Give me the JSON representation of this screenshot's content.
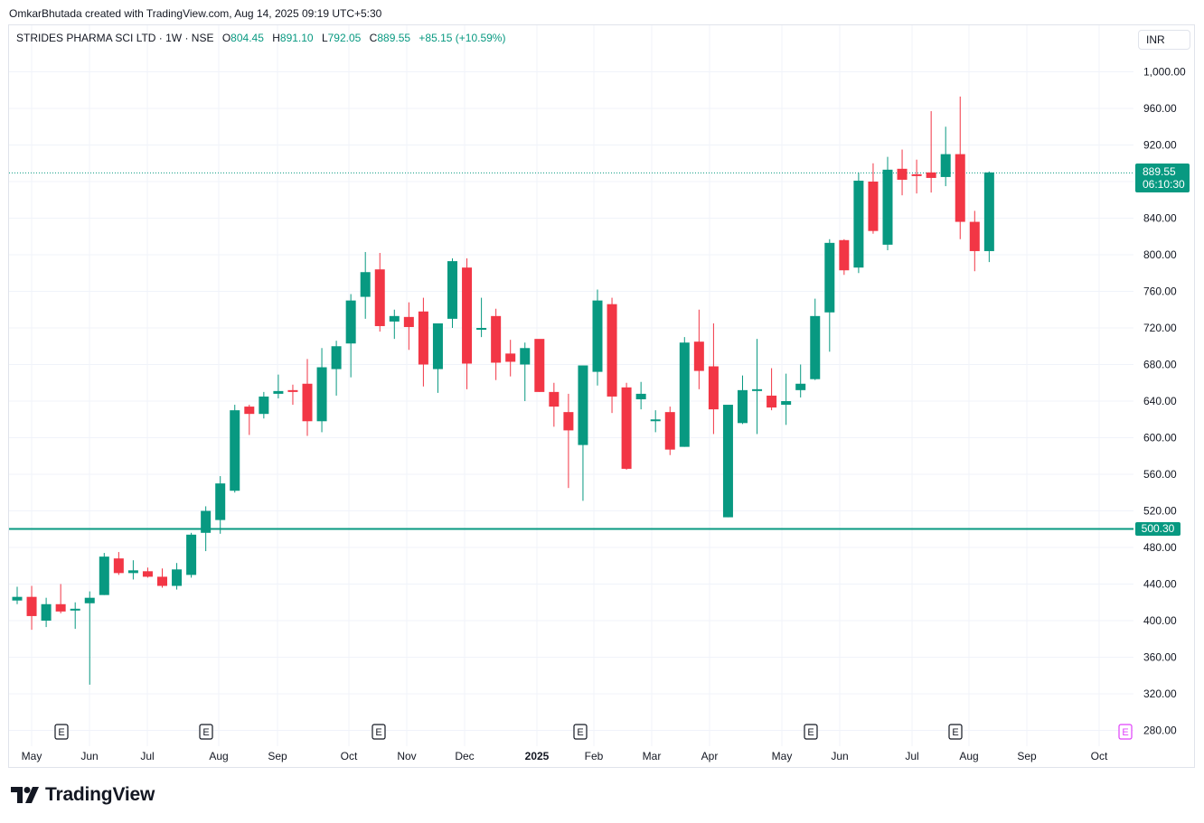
{
  "header": {
    "credit": "OmkarBhutada created with TradingView.com, Aug 14, 2025 09:19 UTC+5:30"
  },
  "legend": {
    "symbol": "STRIDES PHARMA SCI LTD · 1W · NSE",
    "open_label": "O",
    "open": "804.45",
    "high_label": "H",
    "high": "891.10",
    "low_label": "L",
    "low": "792.05",
    "close_label": "C",
    "close": "889.55",
    "change": "+85.15 (+10.59%)"
  },
  "currency_button": "INR",
  "last_price_tag": {
    "price": "889.55",
    "countdown": "06:10:30"
  },
  "support_line_tag": "500.30",
  "footer": {
    "brand": "TradingView"
  },
  "colors": {
    "up": "#089981",
    "down": "#f23645",
    "grid": "#f0f3fa",
    "earnings": "#e040fb"
  },
  "chart_data": {
    "type": "candlestick",
    "interval": "1W",
    "y_axis": {
      "ticks": [
        280,
        320,
        360,
        400,
        440,
        480,
        520,
        560,
        600,
        640,
        680,
        720,
        760,
        800,
        840,
        880,
        920,
        960,
        1000
      ],
      "tick_labels": [
        "280.00",
        "320.00",
        "360.00",
        "400.00",
        "440.00",
        "480.00",
        "520.00",
        "560.00",
        "600.00",
        "640.00",
        "680.00",
        "720.00",
        "760.00",
        "800.00",
        "840.00",
        "",
        "920.00",
        "960.00",
        "1,000.00"
      ]
    },
    "x_axis": {
      "labels": [
        {
          "text": "May",
          "bold": false
        },
        {
          "text": "Jun",
          "bold": false
        },
        {
          "text": "Jul",
          "bold": false
        },
        {
          "text": "Aug",
          "bold": false
        },
        {
          "text": "Sep",
          "bold": false
        },
        {
          "text": "Oct",
          "bold": false
        },
        {
          "text": "Nov",
          "bold": false
        },
        {
          "text": "Dec",
          "bold": false
        },
        {
          "text": "2025",
          "bold": true
        },
        {
          "text": "Feb",
          "bold": false
        },
        {
          "text": "Mar",
          "bold": false
        },
        {
          "text": "Apr",
          "bold": false
        },
        {
          "text": "May",
          "bold": false
        },
        {
          "text": "Jun",
          "bold": false
        },
        {
          "text": "Jul",
          "bold": false
        },
        {
          "text": "Aug",
          "bold": false
        },
        {
          "text": "Sep",
          "bold": false
        },
        {
          "text": "Oct",
          "bold": false
        }
      ]
    },
    "horizontal_line": 500.3,
    "last_price": 889.55,
    "earnings_markers": [
      {
        "label": "E",
        "upcoming": false
      },
      {
        "label": "E",
        "upcoming": false
      },
      {
        "label": "E",
        "upcoming": false
      },
      {
        "label": "E",
        "upcoming": false
      },
      {
        "label": "E",
        "upcoming": false
      },
      {
        "label": "E",
        "upcoming": false
      },
      {
        "label": "E",
        "upcoming": true
      }
    ],
    "candles": [
      [
        422,
        437,
        418,
        426
      ],
      [
        426,
        438,
        390,
        405
      ],
      [
        400,
        425,
        393,
        418
      ],
      [
        418,
        440,
        408,
        410
      ],
      [
        412,
        420,
        391,
        413
      ],
      [
        419,
        432,
        330,
        425
      ],
      [
        428,
        474,
        428,
        470
      ],
      [
        468,
        475,
        450,
        452
      ],
      [
        452,
        466,
        445,
        455
      ],
      [
        454,
        458,
        447,
        448
      ],
      [
        448,
        457,
        436,
        438
      ],
      [
        438,
        463,
        434,
        456
      ],
      [
        450,
        496,
        447,
        494
      ],
      [
        496,
        525,
        476,
        520
      ],
      [
        510,
        558,
        495,
        550
      ],
      [
        542,
        636,
        540,
        630
      ],
      [
        634,
        636,
        603,
        626
      ],
      [
        626,
        650,
        621,
        645
      ],
      [
        648,
        669,
        643,
        651
      ],
      [
        652,
        658,
        636,
        650
      ],
      [
        659,
        686,
        602,
        618
      ],
      [
        618,
        698,
        606,
        677
      ],
      [
        675,
        706,
        646,
        700
      ],
      [
        703,
        757,
        666,
        750
      ],
      [
        754,
        803,
        730,
        781
      ],
      [
        784,
        802,
        716,
        722
      ],
      [
        727,
        740,
        708,
        733
      ],
      [
        732,
        748,
        696,
        721
      ],
      [
        738,
        753,
        656,
        680
      ],
      [
        675,
        722,
        649,
        725
      ],
      [
        730,
        796,
        720,
        793
      ],
      [
        786,
        796,
        653,
        681
      ],
      [
        719,
        753,
        710,
        720
      ],
      [
        733,
        741,
        663,
        682
      ],
      [
        692,
        707,
        667,
        683
      ],
      [
        680,
        704,
        640,
        698
      ],
      [
        708,
        706,
        650,
        650
      ],
      [
        650,
        660,
        612,
        634
      ],
      [
        628,
        648,
        545,
        608
      ],
      [
        592,
        679,
        531,
        679
      ],
      [
        672,
        762,
        657,
        750
      ],
      [
        746,
        753,
        627,
        645
      ],
      [
        655,
        660,
        565,
        566
      ],
      [
        642,
        661,
        631,
        648
      ],
      [
        620,
        630,
        606,
        620
      ],
      [
        628,
        634,
        581,
        587
      ],
      [
        590,
        710,
        590,
        704
      ],
      [
        705,
        740,
        653,
        673
      ],
      [
        678,
        725,
        604,
        631
      ],
      [
        513,
        630,
        513,
        636
      ],
      [
        616,
        668,
        615,
        652
      ],
      [
        652,
        708,
        604,
        653
      ],
      [
        646,
        676,
        630,
        633
      ],
      [
        636,
        670,
        614,
        640
      ],
      [
        652,
        680,
        644,
        659
      ],
      [
        664,
        752,
        663,
        733
      ],
      [
        737,
        817,
        694,
        813
      ],
      [
        816,
        817,
        778,
        783
      ],
      [
        786,
        890,
        780,
        881
      ],
      [
        880,
        900,
        823,
        826
      ],
      [
        811,
        907,
        805,
        893
      ],
      [
        894,
        915,
        865,
        882
      ],
      [
        888,
        904,
        867,
        887
      ],
      [
        890,
        957,
        868,
        884
      ],
      [
        885,
        940,
        875,
        910
      ],
      [
        910,
        973,
        817,
        836
      ],
      [
        836,
        848,
        782,
        804
      ],
      [
        804,
        891,
        792,
        890
      ]
    ]
  }
}
